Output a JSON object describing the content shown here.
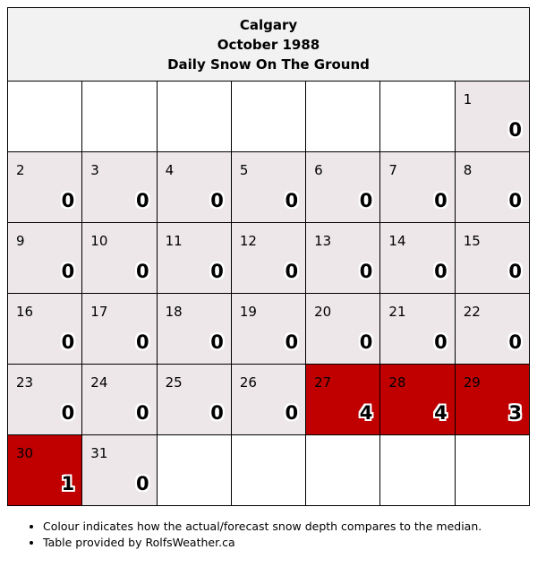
{
  "header": {
    "city": "Calgary",
    "month": "October 1988",
    "metric": "Daily Snow On The Ground"
  },
  "colors": {
    "normal": "#ede7e9",
    "above_median": "#c00000",
    "empty": "#ffffff"
  },
  "weeks": [
    [
      null,
      null,
      null,
      null,
      null,
      null,
      {
        "day": "1",
        "value": "0",
        "status": "normal"
      }
    ],
    [
      {
        "day": "2",
        "value": "0",
        "status": "normal"
      },
      {
        "day": "3",
        "value": "0",
        "status": "normal"
      },
      {
        "day": "4",
        "value": "0",
        "status": "normal"
      },
      {
        "day": "5",
        "value": "0",
        "status": "normal"
      },
      {
        "day": "6",
        "value": "0",
        "status": "normal"
      },
      {
        "day": "7",
        "value": "0",
        "status": "normal"
      },
      {
        "day": "8",
        "value": "0",
        "status": "normal"
      }
    ],
    [
      {
        "day": "9",
        "value": "0",
        "status": "normal"
      },
      {
        "day": "10",
        "value": "0",
        "status": "normal"
      },
      {
        "day": "11",
        "value": "0",
        "status": "normal"
      },
      {
        "day": "12",
        "value": "0",
        "status": "normal"
      },
      {
        "day": "13",
        "value": "0",
        "status": "normal"
      },
      {
        "day": "14",
        "value": "0",
        "status": "normal"
      },
      {
        "day": "15",
        "value": "0",
        "status": "normal"
      }
    ],
    [
      {
        "day": "16",
        "value": "0",
        "status": "normal"
      },
      {
        "day": "17",
        "value": "0",
        "status": "normal"
      },
      {
        "day": "18",
        "value": "0",
        "status": "normal"
      },
      {
        "day": "19",
        "value": "0",
        "status": "normal"
      },
      {
        "day": "20",
        "value": "0",
        "status": "normal"
      },
      {
        "day": "21",
        "value": "0",
        "status": "normal"
      },
      {
        "day": "22",
        "value": "0",
        "status": "normal"
      }
    ],
    [
      {
        "day": "23",
        "value": "0",
        "status": "normal"
      },
      {
        "day": "24",
        "value": "0",
        "status": "normal"
      },
      {
        "day": "25",
        "value": "0",
        "status": "normal"
      },
      {
        "day": "26",
        "value": "0",
        "status": "normal"
      },
      {
        "day": "27",
        "value": "4",
        "status": "above_median"
      },
      {
        "day": "28",
        "value": "4",
        "status": "above_median"
      },
      {
        "day": "29",
        "value": "3",
        "status": "above_median"
      }
    ],
    [
      {
        "day": "30",
        "value": "1",
        "status": "above_median"
      },
      {
        "day": "31",
        "value": "0",
        "status": "normal"
      },
      null,
      null,
      null,
      null,
      null
    ]
  ],
  "notes": [
    "Colour indicates how the actual/forecast snow depth compares to the median.",
    "Table provided by RolfsWeather.ca"
  ]
}
